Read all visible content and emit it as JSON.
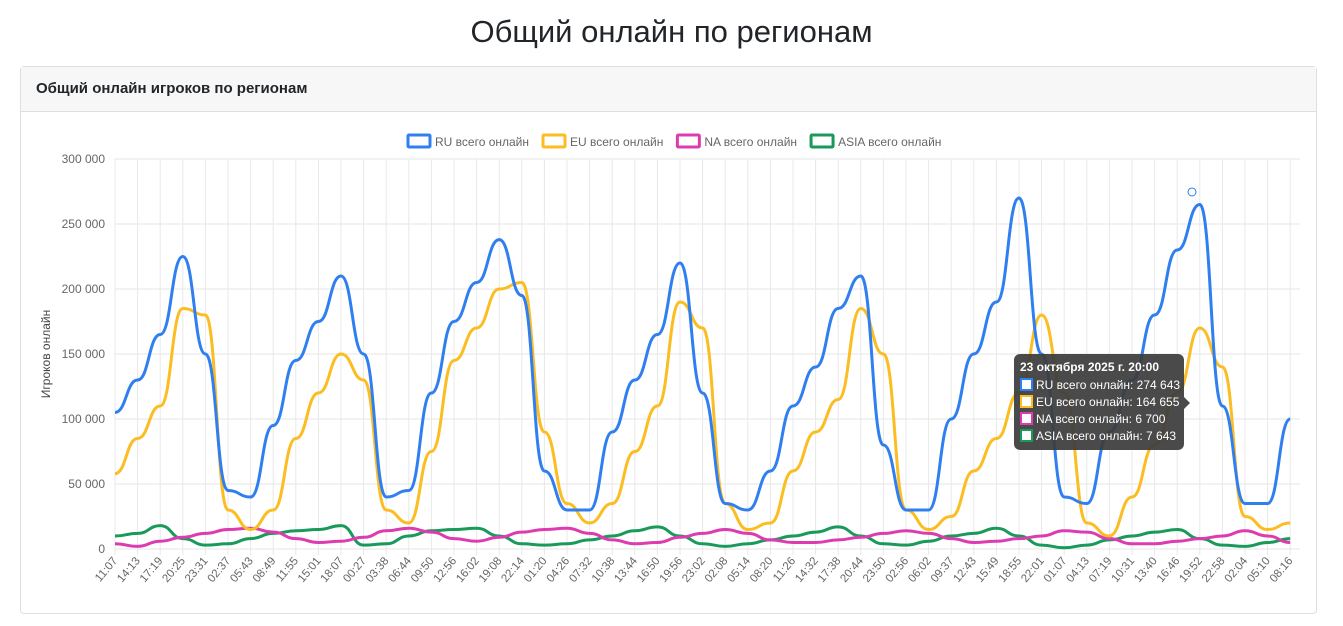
{
  "page_title": "Общий онлайн по регионам",
  "card_title": "Общий онлайн игроков по регионам",
  "chart_data": {
    "type": "line",
    "ylabel": "Игроков онлайн",
    "ylim": [
      0,
      300000
    ],
    "yticks": [
      "0",
      "50 000",
      "100 000",
      "150 000",
      "200 000",
      "250 000",
      "300 000"
    ],
    "grid": true,
    "legend_position": "top",
    "categories": [
      "11:07",
      "14:13",
      "17:19",
      "20:25",
      "23:31",
      "02:37",
      "05:43",
      "08:49",
      "11:55",
      "15:01",
      "18:07",
      "00:27",
      "03:38",
      "06:44",
      "09:50",
      "12:56",
      "16:02",
      "19:08",
      "22:14",
      "01:20",
      "04:26",
      "07:32",
      "10:38",
      "13:44",
      "16:50",
      "19:56",
      "23:02",
      "02:08",
      "05:14",
      "08:20",
      "11:26",
      "14:32",
      "17:38",
      "20:44",
      "23:50",
      "02:56",
      "06:02",
      "09:37",
      "12:43",
      "15:49",
      "18:55",
      "22:01",
      "01:07",
      "04:13",
      "07:19",
      "10:31",
      "13:40",
      "16:46",
      "19:52",
      "22:58",
      "02:04",
      "05:10",
      "08:16"
    ],
    "series": [
      {
        "name": "RU всего онлайн",
        "color": "#2f7ff0",
        "values": [
          105000,
          130000,
          165000,
          225000,
          150000,
          45000,
          40000,
          95000,
          145000,
          175000,
          210000,
          150000,
          40000,
          45000,
          120000,
          175000,
          205000,
          238000,
          195000,
          60000,
          30000,
          30000,
          90000,
          130000,
          165000,
          220000,
          120000,
          35000,
          30000,
          60000,
          110000,
          140000,
          185000,
          210000,
          80000,
          30000,
          30000,
          100000,
          150000,
          190000,
          270000,
          150000,
          40000,
          35000,
          90000,
          130000,
          180000,
          230000,
          265000,
          110000,
          35000,
          35000,
          100000
        ]
      },
      {
        "name": "EU всего онлайн",
        "color": "#fbbd22",
        "values": [
          58000,
          85000,
          110000,
          185000,
          180000,
          30000,
          15000,
          30000,
          85000,
          120000,
          150000,
          130000,
          30000,
          20000,
          75000,
          145000,
          170000,
          200000,
          205000,
          90000,
          35000,
          20000,
          35000,
          75000,
          110000,
          190000,
          170000,
          35000,
          15000,
          20000,
          60000,
          90000,
          115000,
          185000,
          150000,
          30000,
          15000,
          25000,
          60000,
          85000,
          120000,
          180000,
          120000,
          20000,
          10000,
          40000,
          80000,
          120000,
          170000,
          140000,
          25000,
          15000,
          20000
        ]
      },
      {
        "name": "NA всего онлайн",
        "color": "#dd3cb0",
        "values": [
          4000,
          2000,
          6000,
          9000,
          12000,
          15000,
          16000,
          13000,
          8000,
          5000,
          6000,
          9000,
          14000,
          16000,
          13000,
          8000,
          6000,
          9000,
          13000,
          15000,
          16000,
          12000,
          7000,
          4000,
          5000,
          9000,
          12000,
          15000,
          12000,
          7000,
          5000,
          5000,
          7000,
          9000,
          12000,
          14000,
          12000,
          8000,
          5000,
          6000,
          8000,
          10000,
          14000,
          13000,
          8000,
          4000,
          4000,
          6000,
          8000,
          10000,
          14000,
          10000,
          5000
        ]
      },
      {
        "name": "ASIA всего онлайн",
        "color": "#1a9a5a",
        "values": [
          10000,
          12000,
          18000,
          8000,
          3000,
          4000,
          8000,
          12000,
          14000,
          15000,
          18000,
          3000,
          4000,
          10000,
          14000,
          15000,
          16000,
          10000,
          4000,
          3000,
          4000,
          7000,
          10000,
          14000,
          17000,
          10000,
          4000,
          2000,
          4000,
          7000,
          10000,
          13000,
          17000,
          10000,
          4000,
          3000,
          6000,
          10000,
          12000,
          16000,
          10000,
          3000,
          1000,
          3000,
          7000,
          10000,
          13000,
          15000,
          8000,
          3000,
          2000,
          5000,
          8000
        ]
      }
    ],
    "tooltip": {
      "title": "23 октября 2025 г. 20:00",
      "rows": [
        "RU всего онлайн: 274 643",
        "EU всего онлайн: 164 655",
        "NA всего онлайн: 6 700",
        "ASIA всего онлайн: 7 643"
      ]
    }
  }
}
